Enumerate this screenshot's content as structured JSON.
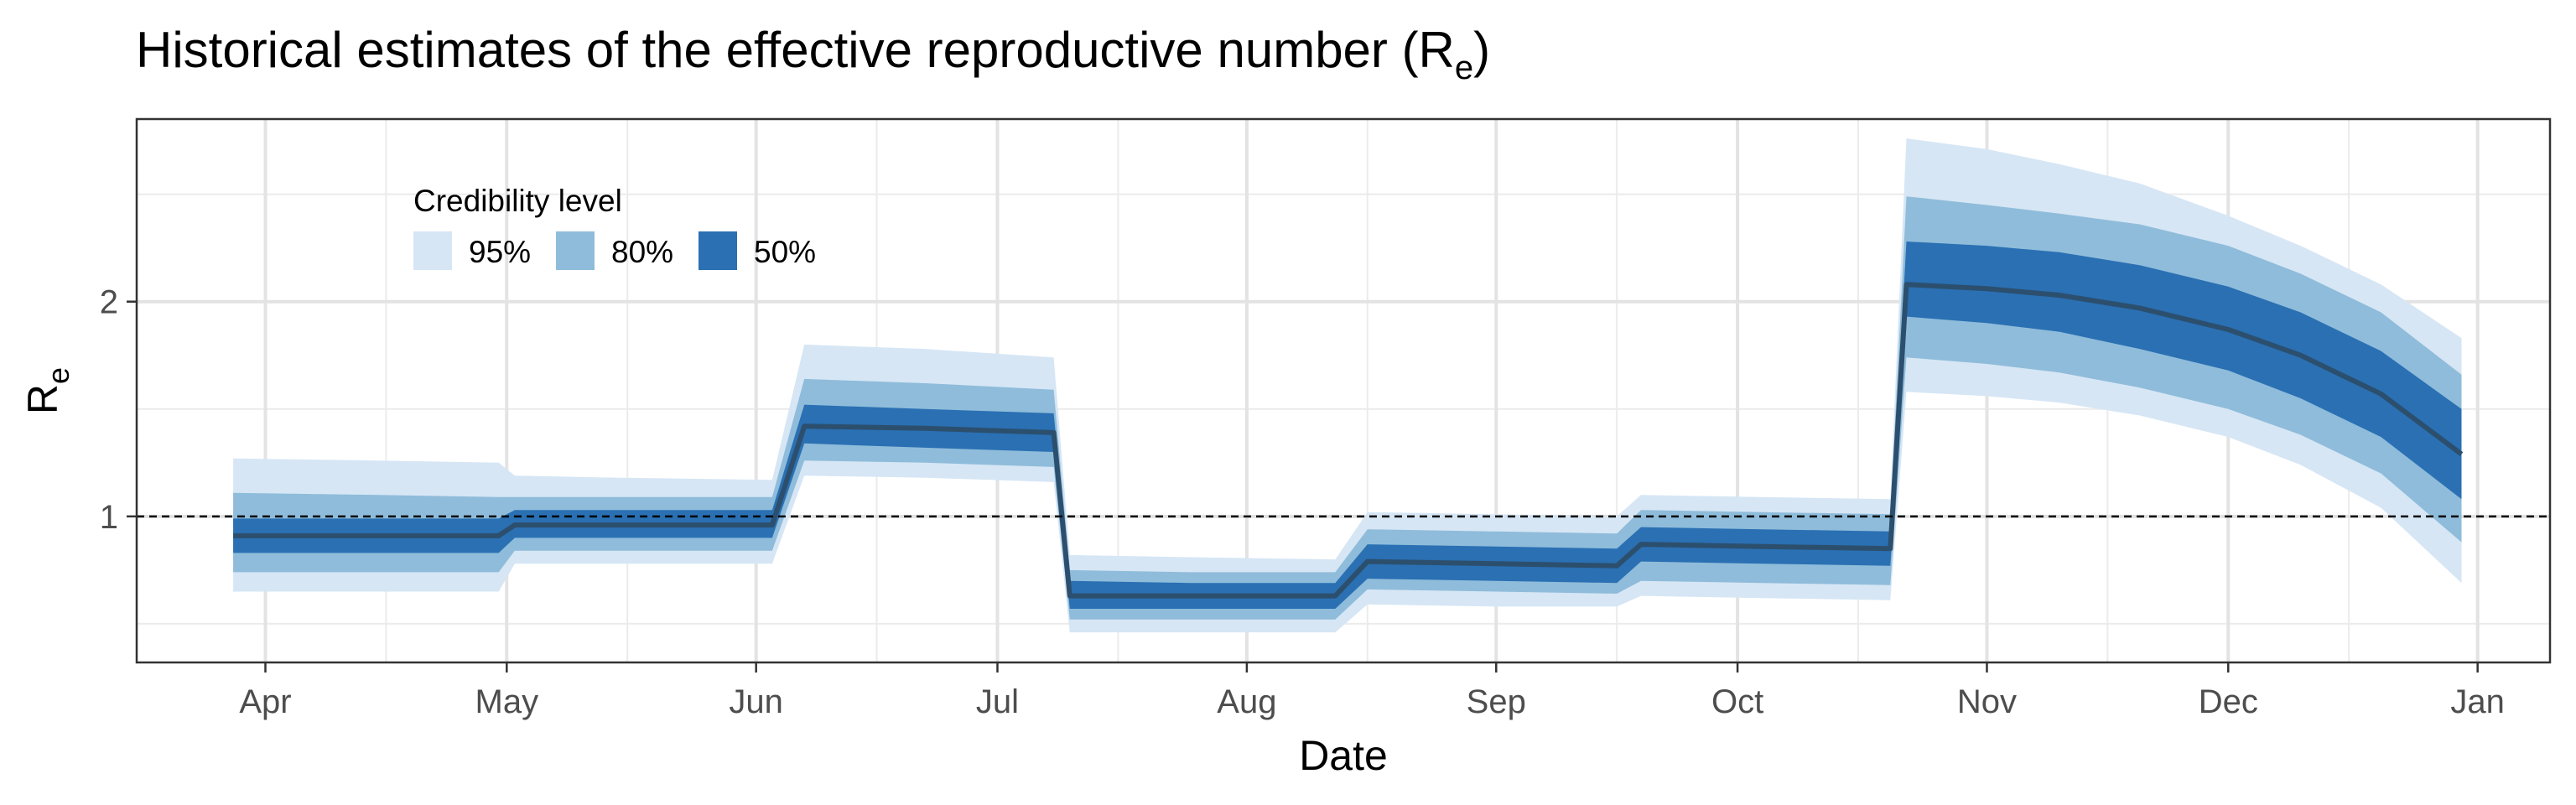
{
  "chart_data": {
    "type": "area",
    "title": "Historical estimates of the effective reproductive number (R",
    "title_subscript": "e",
    "title_suffix": ")",
    "xlabel": "Date",
    "ylabel": "R",
    "ylabel_subscript": "e",
    "xlim": [
      "2020-03-16",
      "2021-01-10"
    ],
    "ylim": [
      0.32,
      2.85
    ],
    "x_ticks": [
      {
        "date": "2020-04-01",
        "label": "Apr"
      },
      {
        "date": "2020-05-01",
        "label": "May"
      },
      {
        "date": "2020-06-01",
        "label": "Jun"
      },
      {
        "date": "2020-07-01",
        "label": "Jul"
      },
      {
        "date": "2020-08-01",
        "label": "Aug"
      },
      {
        "date": "2020-09-01",
        "label": "Sep"
      },
      {
        "date": "2020-10-01",
        "label": "Oct"
      },
      {
        "date": "2020-11-01",
        "label": "Nov"
      },
      {
        "date": "2020-12-01",
        "label": "Dec"
      },
      {
        "date": "2021-01-01",
        "label": "Jan"
      }
    ],
    "y_ticks": [
      {
        "value": 1,
        "label": "1"
      },
      {
        "value": 2,
        "label": "2"
      }
    ],
    "y_minor_gridlines": [
      0.5,
      1.5,
      2.5
    ],
    "reference_line": {
      "value": 1,
      "style": "dashed"
    },
    "grid": true,
    "legend": {
      "title": "Credibility level",
      "position": "top-left",
      "items": [
        {
          "label": "95%",
          "color": "#d6e6f5"
        },
        {
          "label": "80%",
          "color": "#8fbcda"
        },
        {
          "label": "50%",
          "color": "#2a70b3"
        }
      ]
    },
    "median_color": "#2c4f6e",
    "series": [
      {
        "x": [
          "2020-03-28",
          "2020-04-15",
          "2020-04-30",
          "2020-05-02",
          "2020-05-15",
          "2020-06-03",
          "2020-06-07",
          "2020-06-22",
          "2020-07-08",
          "2020-07-10",
          "2020-07-25",
          "2020-08-12",
          "2020-08-16",
          "2020-09-01",
          "2020-09-16",
          "2020-09-19",
          "2020-10-04",
          "2020-10-20",
          "2020-10-22",
          "2020-11-01",
          "2020-11-10",
          "2020-11-20",
          "2020-12-01",
          "2020-12-10",
          "2020-12-20",
          "2020-12-30"
        ],
        "median": [
          0.91,
          0.91,
          0.91,
          0.96,
          0.96,
          0.96,
          1.42,
          1.41,
          1.39,
          0.63,
          0.63,
          0.63,
          0.79,
          0.78,
          0.77,
          0.87,
          0.86,
          0.85,
          2.08,
          2.06,
          2.03,
          1.97,
          1.87,
          1.75,
          1.57,
          1.29
        ],
        "lo50": [
          0.83,
          0.83,
          0.83,
          0.9,
          0.9,
          0.9,
          1.34,
          1.32,
          1.3,
          0.57,
          0.57,
          0.57,
          0.71,
          0.7,
          0.69,
          0.79,
          0.78,
          0.77,
          1.93,
          1.9,
          1.86,
          1.78,
          1.68,
          1.55,
          1.37,
          1.08
        ],
        "hi50": [
          0.99,
          0.99,
          0.99,
          1.03,
          1.03,
          1.03,
          1.52,
          1.5,
          1.48,
          0.7,
          0.69,
          0.69,
          0.87,
          0.86,
          0.85,
          0.95,
          0.94,
          0.93,
          2.28,
          2.26,
          2.23,
          2.17,
          2.07,
          1.95,
          1.77,
          1.5
        ],
        "lo80": [
          0.74,
          0.74,
          0.74,
          0.84,
          0.84,
          0.84,
          1.26,
          1.25,
          1.23,
          0.52,
          0.52,
          0.52,
          0.66,
          0.65,
          0.64,
          0.7,
          0.69,
          0.68,
          1.74,
          1.71,
          1.67,
          1.6,
          1.5,
          1.38,
          1.2,
          0.88
        ],
        "hi80": [
          1.11,
          1.1,
          1.09,
          1.09,
          1.09,
          1.09,
          1.64,
          1.62,
          1.59,
          0.75,
          0.74,
          0.74,
          0.94,
          0.93,
          0.92,
          1.03,
          1.02,
          1.01,
          2.49,
          2.45,
          2.41,
          2.36,
          2.26,
          2.13,
          1.95,
          1.66
        ],
        "lo95": [
          0.65,
          0.65,
          0.65,
          0.78,
          0.78,
          0.78,
          1.19,
          1.18,
          1.16,
          0.46,
          0.46,
          0.46,
          0.59,
          0.58,
          0.58,
          0.63,
          0.62,
          0.61,
          1.58,
          1.56,
          1.53,
          1.47,
          1.37,
          1.24,
          1.04,
          0.69
        ],
        "hi95": [
          1.27,
          1.26,
          1.25,
          1.19,
          1.18,
          1.17,
          1.8,
          1.78,
          1.74,
          0.82,
          0.81,
          0.8,
          1.02,
          1.01,
          1.0,
          1.1,
          1.09,
          1.08,
          2.76,
          2.71,
          2.64,
          2.55,
          2.4,
          2.26,
          2.08,
          1.83
        ]
      }
    ]
  }
}
